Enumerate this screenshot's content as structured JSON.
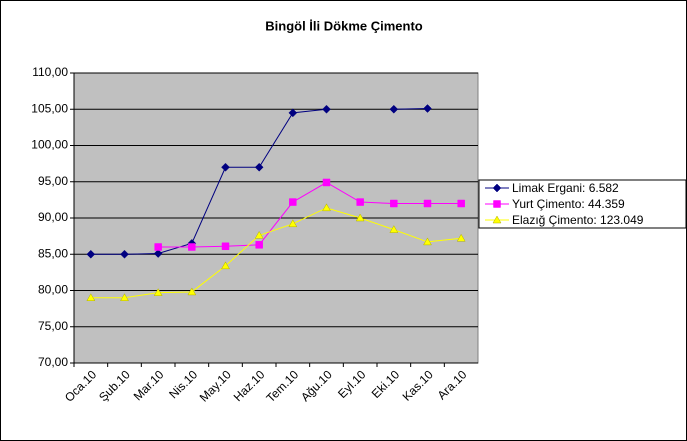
{
  "chart_data": {
    "type": "line",
    "title": "Bingöl İli Dökme Çimento",
    "categories": [
      "Oca.10",
      "Şub.10",
      "Mar.10",
      "Nis.10",
      "May.10",
      "Haz.10",
      "Tem.10",
      "Ağu.10",
      "Eyl.10",
      "Eki.10",
      "Kas.10",
      "Ara.10"
    ],
    "series": [
      {
        "name": "Limak Ergani: 6.582",
        "color": "#000080",
        "marker": "diamond",
        "values": [
          85,
          85,
          85.1,
          86.5,
          97,
          97,
          104.5,
          105,
          null,
          105,
          105.1,
          null
        ]
      },
      {
        "name": "Yurt Çimento: 44.359",
        "color": "#ff00ff",
        "marker": "square",
        "values": [
          null,
          null,
          86,
          86,
          86.1,
          86.3,
          92.2,
          94.9,
          92.2,
          92,
          92,
          92
        ]
      },
      {
        "name": "Elazığ Çimento: 123.049",
        "color": "#ffff00",
        "marker": "triangle",
        "values": [
          79,
          79,
          79.7,
          79.8,
          83.4,
          87.6,
          89.2,
          91.4,
          90,
          88.4,
          86.7,
          87.2
        ]
      }
    ],
    "ylim": [
      70,
      110
    ],
    "yticks": [
      {
        "value": 70,
        "label": "70,00"
      },
      {
        "value": 75,
        "label": "75,00"
      },
      {
        "value": 80,
        "label": "80,00"
      },
      {
        "value": 85,
        "label": "85,00"
      },
      {
        "value": 90,
        "label": "90,00"
      },
      {
        "value": 95,
        "label": "95,00"
      },
      {
        "value": 100,
        "label": "100,00"
      },
      {
        "value": 105,
        "label": "105,00"
      },
      {
        "value": 110,
        "label": "110,00"
      }
    ],
    "grid": true,
    "legend": "right",
    "plot_background": "#c0c0c0"
  }
}
